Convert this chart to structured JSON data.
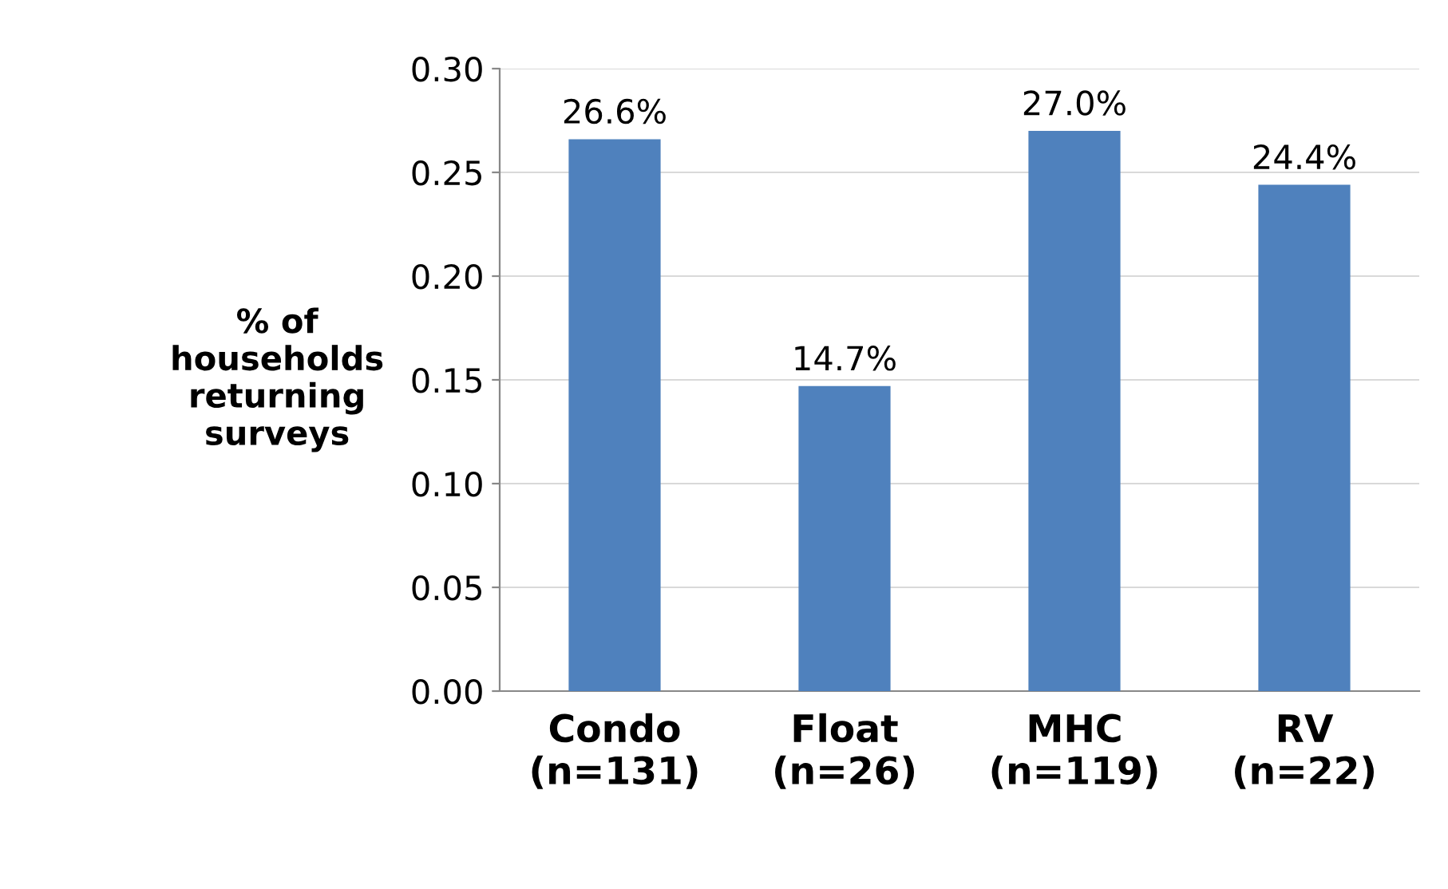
{
  "chart_data": {
    "type": "bar",
    "ylabel": "% of\nhouseholds\nreturning\nsurveys",
    "categories": [
      "Condo\n(n=131)",
      "Float\n(n=26)",
      "MHC\n(n=119)",
      "RV\n(n=22)"
    ],
    "values": [
      0.266,
      0.147,
      0.27,
      0.244
    ],
    "value_labels": [
      "26.6%",
      "14.7%",
      "27.0%",
      "24.4%"
    ],
    "color": "#4f81bd",
    "ylim": [
      0,
      0.3
    ],
    "yticks": [
      {
        "value": 0,
        "label": "0.00"
      },
      {
        "value": 0.05,
        "label": "0.05"
      },
      {
        "value": 0.1,
        "label": "0.10"
      },
      {
        "value": 0.15,
        "label": "0.15"
      },
      {
        "value": 0.2,
        "label": "0.20"
      },
      {
        "value": 0.25,
        "label": "0.25"
      },
      {
        "value": 0.3,
        "label": "0.30"
      }
    ],
    "grid": "y",
    "legend": false
  }
}
